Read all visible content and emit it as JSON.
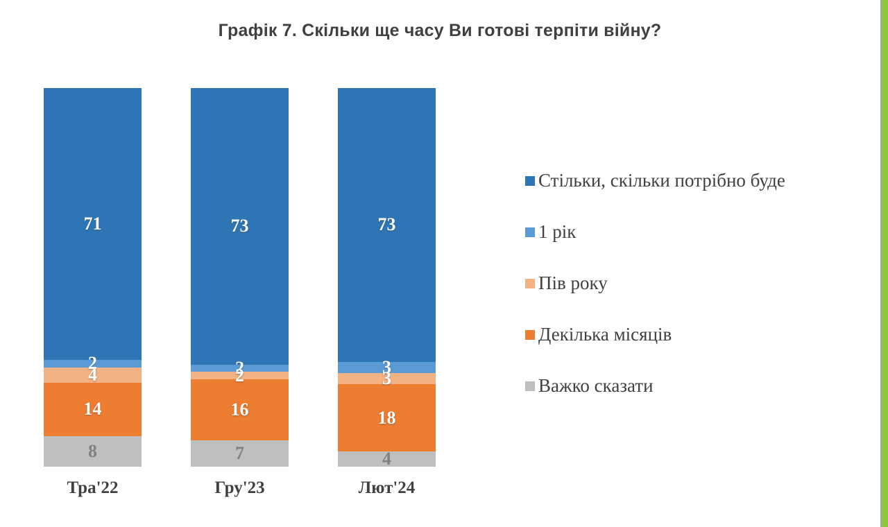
{
  "page": {
    "background": "#FFFFFF",
    "accent_stripe_color": "#8DC63F",
    "accent_stripe_divider_color": "#A6A6A6"
  },
  "chart_data": {
    "type": "bar",
    "stacked": true,
    "title": "Графік 7. Скільки ще часу Ви готові терпіти війну?",
    "categories": [
      "Тра'22",
      "Гру'23",
      "Лют'24"
    ],
    "series": [
      {
        "name": "Стільки, скільки потрібно буде",
        "color": "#2E75B6",
        "label_color": "#FFFFFF",
        "values": [
          71,
          73,
          73
        ]
      },
      {
        "name": "1 рік",
        "color": "#5B9BD5",
        "label_color": "#FFFFFF",
        "values": [
          2,
          2,
          3
        ]
      },
      {
        "name": "Пів року",
        "color": "#F4B183",
        "label_color": "#FFFFFF",
        "values": [
          4,
          2,
          3
        ]
      },
      {
        "name": "Декілька місяців",
        "color": "#ED7D31",
        "label_color": "#FFFFFF",
        "values": [
          14,
          16,
          18
        ]
      },
      {
        "name": "Важко сказати",
        "color": "#BFBFBF",
        "label_color": "#808080",
        "values": [
          8,
          7,
          4
        ]
      }
    ],
    "stack_order": "first series on top, last series at bottom",
    "legend_position": "right",
    "grid": false,
    "axes": "no visible value axis; category labels below bars",
    "bar_scale": "each bar normalized to full height (values are percentages)",
    "title_color": "#404040",
    "axis_label_color": "#404040",
    "legend_text_color": "#404040"
  }
}
